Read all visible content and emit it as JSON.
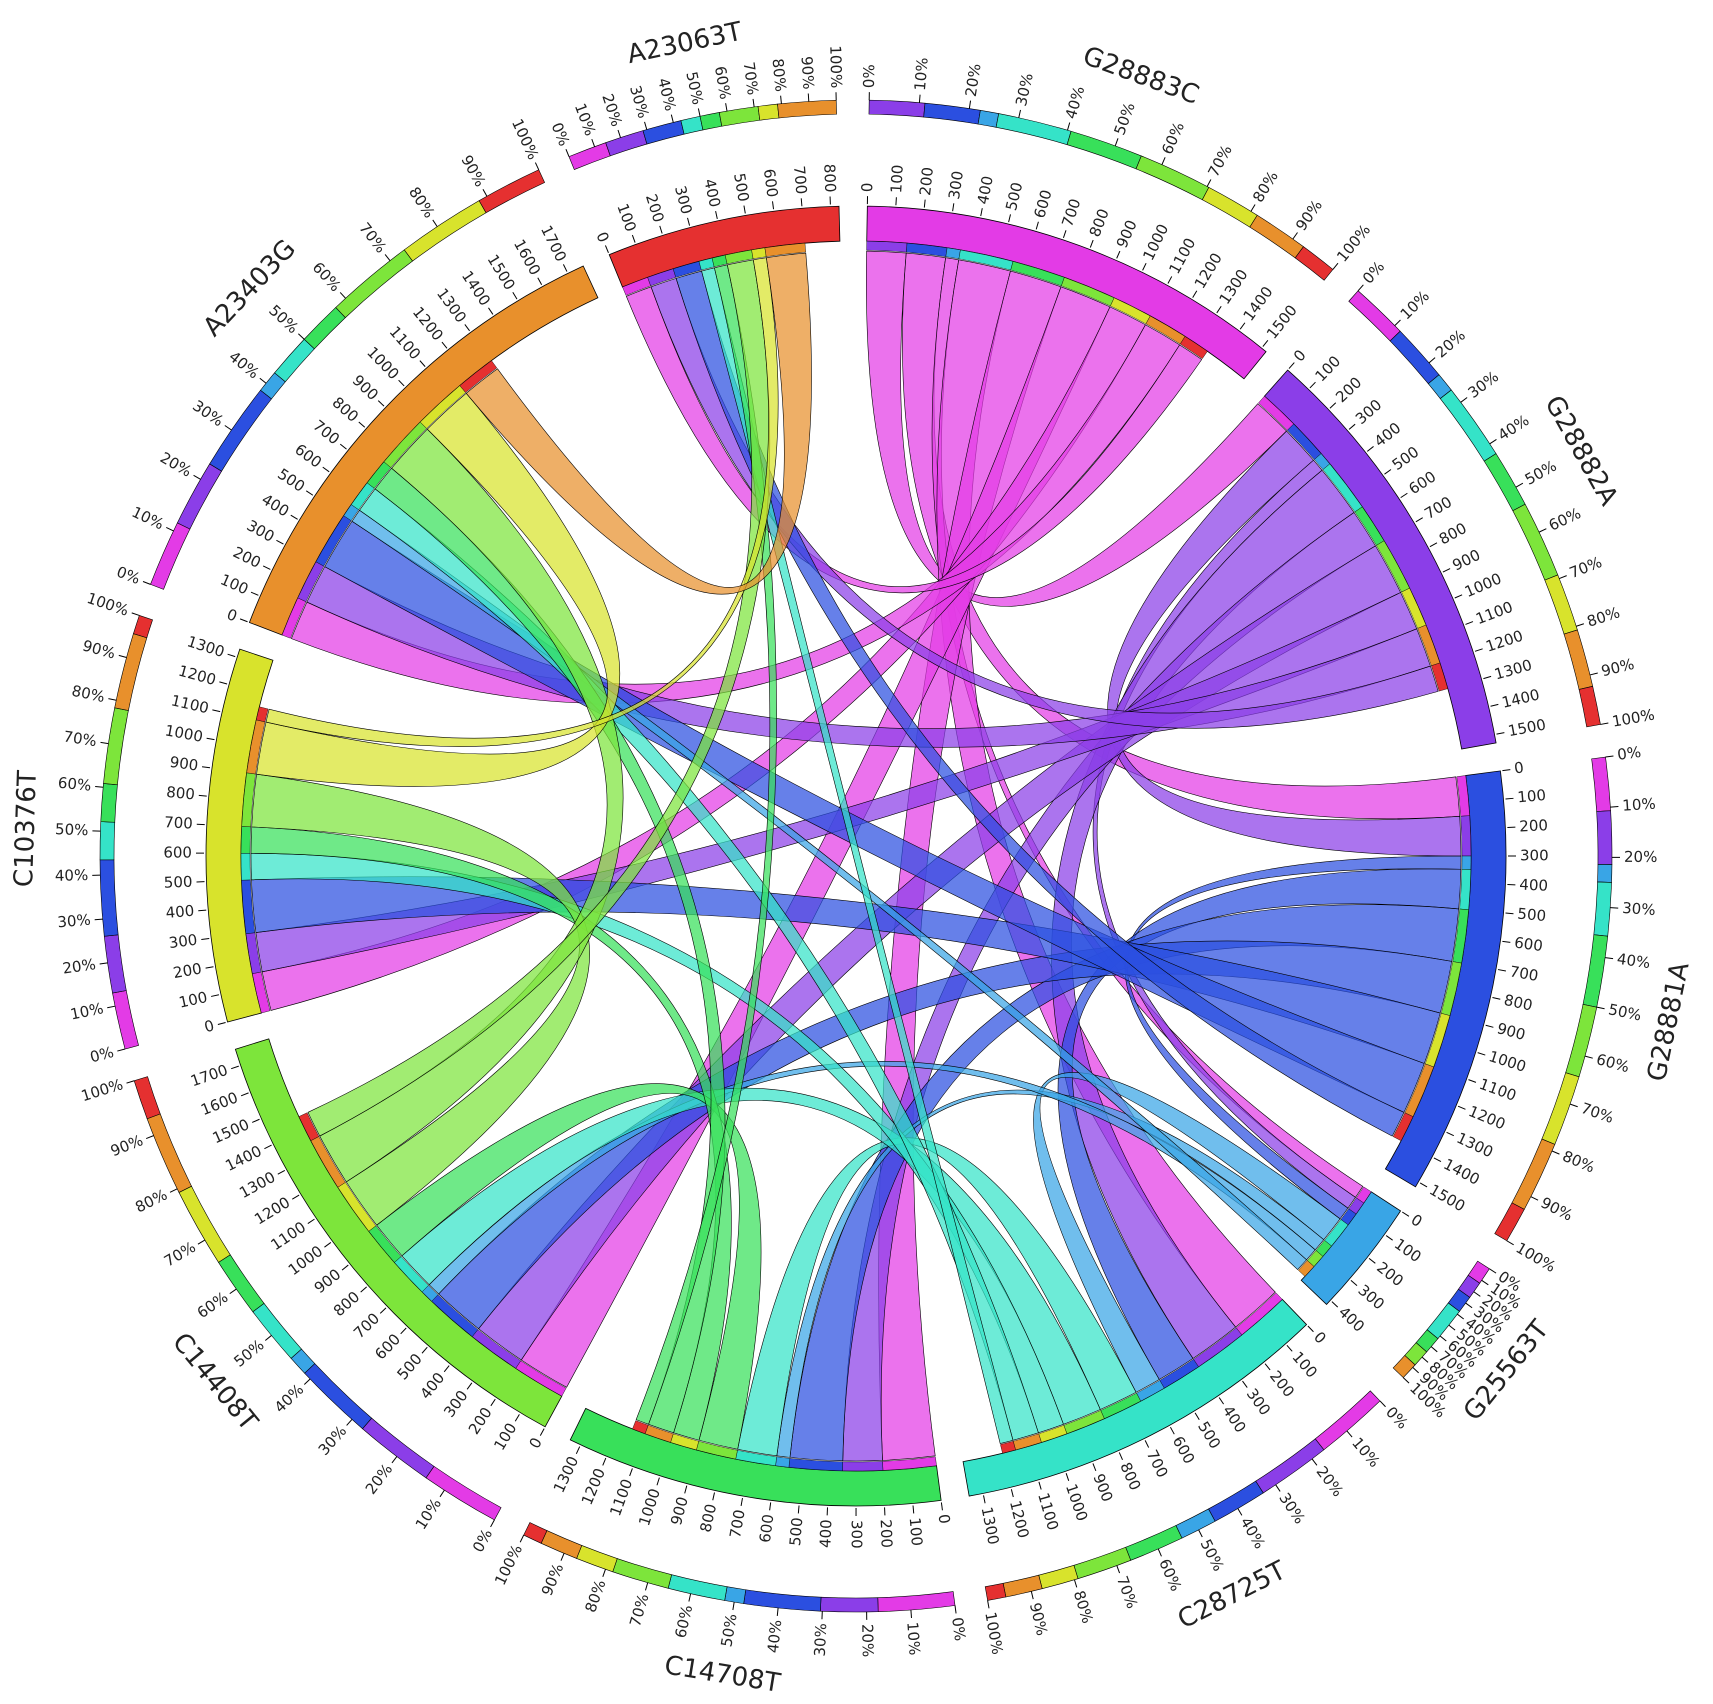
{
  "chart_data": {
    "type": "chord",
    "segments": [
      {
        "name": "G28883C",
        "color": "#e33be6",
        "xlim": [
          0,
          1520
        ],
        "ticks": [
          0,
          100,
          200,
          300,
          400,
          500,
          600,
          700,
          800,
          900,
          1000,
          1100,
          1200,
          1300,
          1400,
          1500
        ]
      },
      {
        "name": "G28882A",
        "color": "#8b3ee8",
        "xlim": [
          0,
          1530
        ],
        "ticks": [
          0,
          100,
          200,
          300,
          400,
          500,
          600,
          700,
          800,
          900,
          1000,
          1100,
          1200,
          1300,
          1400,
          1500
        ]
      },
      {
        "name": "G28881A",
        "color": "#2b4fe0",
        "xlim": [
          0,
          1520
        ],
        "ticks": [
          0,
          100,
          200,
          300,
          400,
          500,
          600,
          700,
          800,
          900,
          1000,
          1100,
          1200,
          1300,
          1400,
          1500
        ]
      },
      {
        "name": "G25563T",
        "color": "#39a5e6",
        "xlim": [
          0,
          420
        ],
        "ticks": [
          0,
          100,
          200,
          300,
          400
        ]
      },
      {
        "name": "C28725T",
        "color": "#35e3c8",
        "xlim": [
          0,
          1350
        ],
        "ticks": [
          0,
          100,
          200,
          300,
          400,
          500,
          600,
          700,
          800,
          900,
          1000,
          1100,
          1200,
          1300
        ]
      },
      {
        "name": "C14708T",
        "color": "#38e05a",
        "xlim": [
          0,
          1340
        ],
        "ticks": [
          0,
          100,
          200,
          300,
          400,
          500,
          600,
          700,
          800,
          900,
          1000,
          1100,
          1200,
          1300
        ]
      },
      {
        "name": "C14408T",
        "color": "#7de53b",
        "xlim": [
          0,
          1760
        ],
        "ticks": [
          0,
          100,
          200,
          300,
          400,
          500,
          600,
          700,
          800,
          900,
          1000,
          1100,
          1200,
          1300,
          1400,
          1500,
          1600,
          1700
        ]
      },
      {
        "name": "C10376T",
        "color": "#d8e32c",
        "xlim": [
          0,
          1330
        ],
        "ticks": [
          0,
          100,
          200,
          300,
          400,
          500,
          600,
          700,
          800,
          900,
          1000,
          1100,
          1200,
          1300
        ]
      },
      {
        "name": "A23403G",
        "color": "#e8902c",
        "xlim": [
          0,
          1760
        ],
        "ticks": [
          0,
          100,
          200,
          300,
          400,
          500,
          600,
          700,
          800,
          900,
          1000,
          1100,
          1200,
          1300,
          1400,
          1500,
          1600,
          1700
        ]
      },
      {
        "name": "A23063T",
        "color": "#e53030",
        "xlim": [
          0,
          830
        ],
        "ticks": [
          0,
          100,
          200,
          300,
          400,
          500,
          600,
          700,
          800
        ]
      }
    ],
    "percent_ticks": [
      {
        "value": 0,
        "label": "0%"
      },
      {
        "value": 10,
        "label": "10%"
      },
      {
        "value": 20,
        "label": "20%"
      },
      {
        "value": 30,
        "label": "30%"
      },
      {
        "value": 40,
        "label": "40%"
      },
      {
        "value": 50,
        "label": "50%"
      },
      {
        "value": 60,
        "label": "60%"
      },
      {
        "value": 70,
        "label": "70%"
      },
      {
        "value": 80,
        "label": "80%"
      },
      {
        "value": 90,
        "label": "90%"
      },
      {
        "value": 100,
        "label": "100%"
      }
    ],
    "links": [
      {
        "source": 0,
        "target": 1,
        "value": 150
      },
      {
        "source": 0,
        "target": 2,
        "value": 150
      },
      {
        "source": 0,
        "target": 3,
        "value": 50
      },
      {
        "source": 0,
        "target": 4,
        "value": 200
      },
      {
        "source": 0,
        "target": 5,
        "value": 200
      },
      {
        "source": 0,
        "target": 6,
        "value": 200
      },
      {
        "source": 0,
        "target": 7,
        "value": 150
      },
      {
        "source": 0,
        "target": 8,
        "value": 150
      },
      {
        "source": 0,
        "target": 9,
        "value": 100
      },
      {
        "source": 1,
        "target": 2,
        "value": 150
      },
      {
        "source": 1,
        "target": 3,
        "value": 50
      },
      {
        "source": 1,
        "target": 4,
        "value": 200
      },
      {
        "source": 1,
        "target": 5,
        "value": 150
      },
      {
        "source": 1,
        "target": 6,
        "value": 200
      },
      {
        "source": 1,
        "target": 7,
        "value": 150
      },
      {
        "source": 1,
        "target": 8,
        "value": 150
      },
      {
        "source": 1,
        "target": 9,
        "value": 100
      },
      {
        "source": 2,
        "target": 3,
        "value": 50
      },
      {
        "source": 2,
        "target": 4,
        "value": 150
      },
      {
        "source": 2,
        "target": 5,
        "value": 200
      },
      {
        "source": 2,
        "target": 6,
        "value": 200
      },
      {
        "source": 2,
        "target": 7,
        "value": 200
      },
      {
        "source": 2,
        "target": 8,
        "value": 200
      },
      {
        "source": 2,
        "target": 9,
        "value": 100
      },
      {
        "source": 3,
        "target": 4,
        "value": 100
      },
      {
        "source": 3,
        "target": 5,
        "value": 50
      },
      {
        "source": 3,
        "target": 6,
        "value": 50
      },
      {
        "source": 3,
        "target": 8,
        "value": 50
      },
      {
        "source": 4,
        "target": 5,
        "value": 150
      },
      {
        "source": 4,
        "target": 6,
        "value": 150
      },
      {
        "source": 4,
        "target": 7,
        "value": 100
      },
      {
        "source": 4,
        "target": 8,
        "value": 100
      },
      {
        "source": 4,
        "target": 9,
        "value": 50
      },
      {
        "source": 5,
        "target": 6,
        "value": 150
      },
      {
        "source": 5,
        "target": 7,
        "value": 100
      },
      {
        "source": 5,
        "target": 8,
        "value": 100
      },
      {
        "source": 5,
        "target": 9,
        "value": 50
      },
      {
        "source": 6,
        "target": 7,
        "value": 200
      },
      {
        "source": 6,
        "target": 8,
        "value": 200
      },
      {
        "source": 6,
        "target": 9,
        "value": 100
      },
      {
        "source": 7,
        "target": 8,
        "value": 200
      },
      {
        "source": 7,
        "target": 9,
        "value": 50
      },
      {
        "source": 8,
        "target": 9,
        "value": 150
      }
    ]
  }
}
